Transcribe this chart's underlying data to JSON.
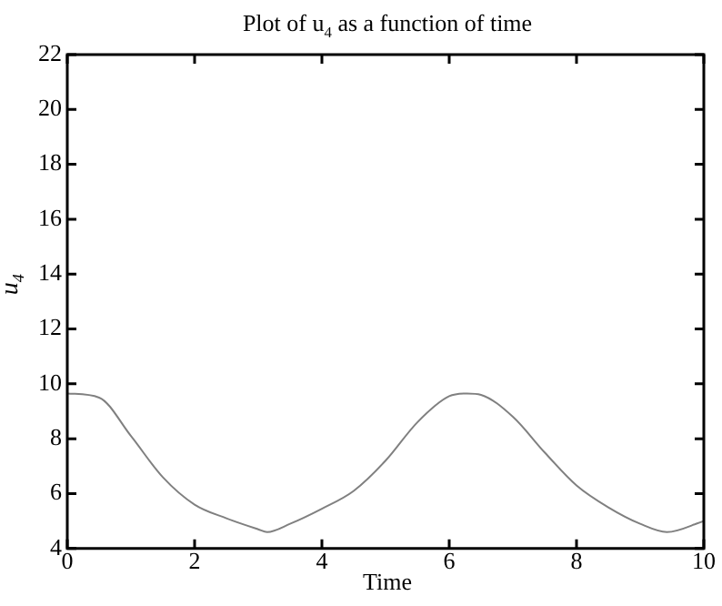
{
  "chart_data": {
    "type": "line",
    "title": "Plot of u$_{4}$ as a function of time",
    "xlabel": "Time",
    "ylabel": "u$_{4}$",
    "series": [
      {
        "color": "#808080",
        "x": [
          0,
          0.5,
          1,
          1.5,
          2,
          2.5,
          3,
          3.14,
          3.5,
          4,
          4.5,
          5,
          5.5,
          6,
          6.28,
          6.5,
          7,
          7.5,
          8,
          8.5,
          9,
          9.42,
          10
        ],
        "values": [
          9.65,
          9.5,
          8.1,
          6.6,
          5.6,
          5.1,
          4.7,
          4.6,
          4.9,
          5.45,
          6.1,
          7.2,
          8.6,
          9.55,
          9.65,
          9.6,
          8.8,
          7.5,
          6.3,
          5.5,
          4.9,
          4.6,
          5.0
        ]
      }
    ],
    "xlim": [
      0,
      10
    ],
    "xticks": [
      0,
      2,
      4,
      6,
      8,
      10
    ],
    "ylim": [
      4,
      22
    ],
    "yticks": [
      4,
      6,
      8,
      10,
      12,
      14,
      16,
      18,
      20,
      22
    ],
    "grid": false,
    "legend": false,
    "marker": "none",
    "line_style": "solid"
  }
}
